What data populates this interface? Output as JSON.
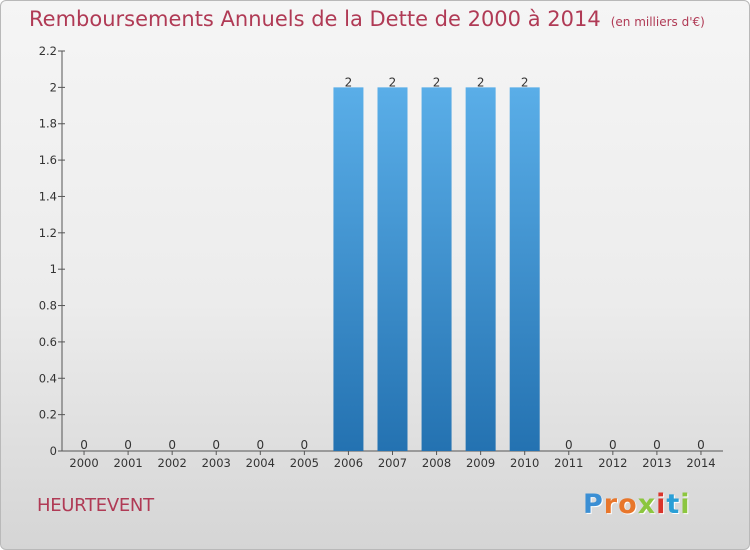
{
  "chart_data": {
    "type": "bar",
    "title": "Remboursements Annuels de la Dette de 2000 à 2014",
    "unit_label": "(en milliers d'€)",
    "categories": [
      "2000",
      "2001",
      "2002",
      "2003",
      "2004",
      "2005",
      "2006",
      "2007",
      "2008",
      "2009",
      "2010",
      "2011",
      "2012",
      "2013",
      "2014"
    ],
    "values": [
      0,
      0,
      0,
      0,
      0,
      0,
      2,
      2,
      2,
      2,
      2,
      0,
      0,
      0,
      0
    ],
    "data_labels": [
      "0",
      "0",
      "0",
      "0",
      "0",
      "0",
      "2",
      "2",
      "2",
      "2",
      "2",
      "0",
      "0",
      "0",
      "0"
    ],
    "ylim": [
      0,
      2.2
    ],
    "y_ticks": [
      0,
      0.2,
      0.4,
      0.6,
      0.8,
      1,
      1.2,
      1.4,
      1.6,
      1.8,
      2,
      2.2
    ],
    "y_tick_labels": [
      "0",
      "0.2",
      "0.4",
      "0.6",
      "0.8",
      "1",
      "1.2",
      "1.4",
      "1.6",
      "1.8",
      "2",
      "2.2"
    ],
    "xlabel": "",
    "ylabel": "",
    "grid": false,
    "bar_color_top": "#5aaee8",
    "bar_color_bottom": "#2472b1"
  },
  "commune": "HEURTEVENT",
  "logo": {
    "text": "Proxiti",
    "letter_colors": [
      "#3b8fd4",
      "#e8762b",
      "#e8762b",
      "#8cc63f",
      "#d9342b",
      "#2a9fd6",
      "#8cc63f"
    ]
  }
}
